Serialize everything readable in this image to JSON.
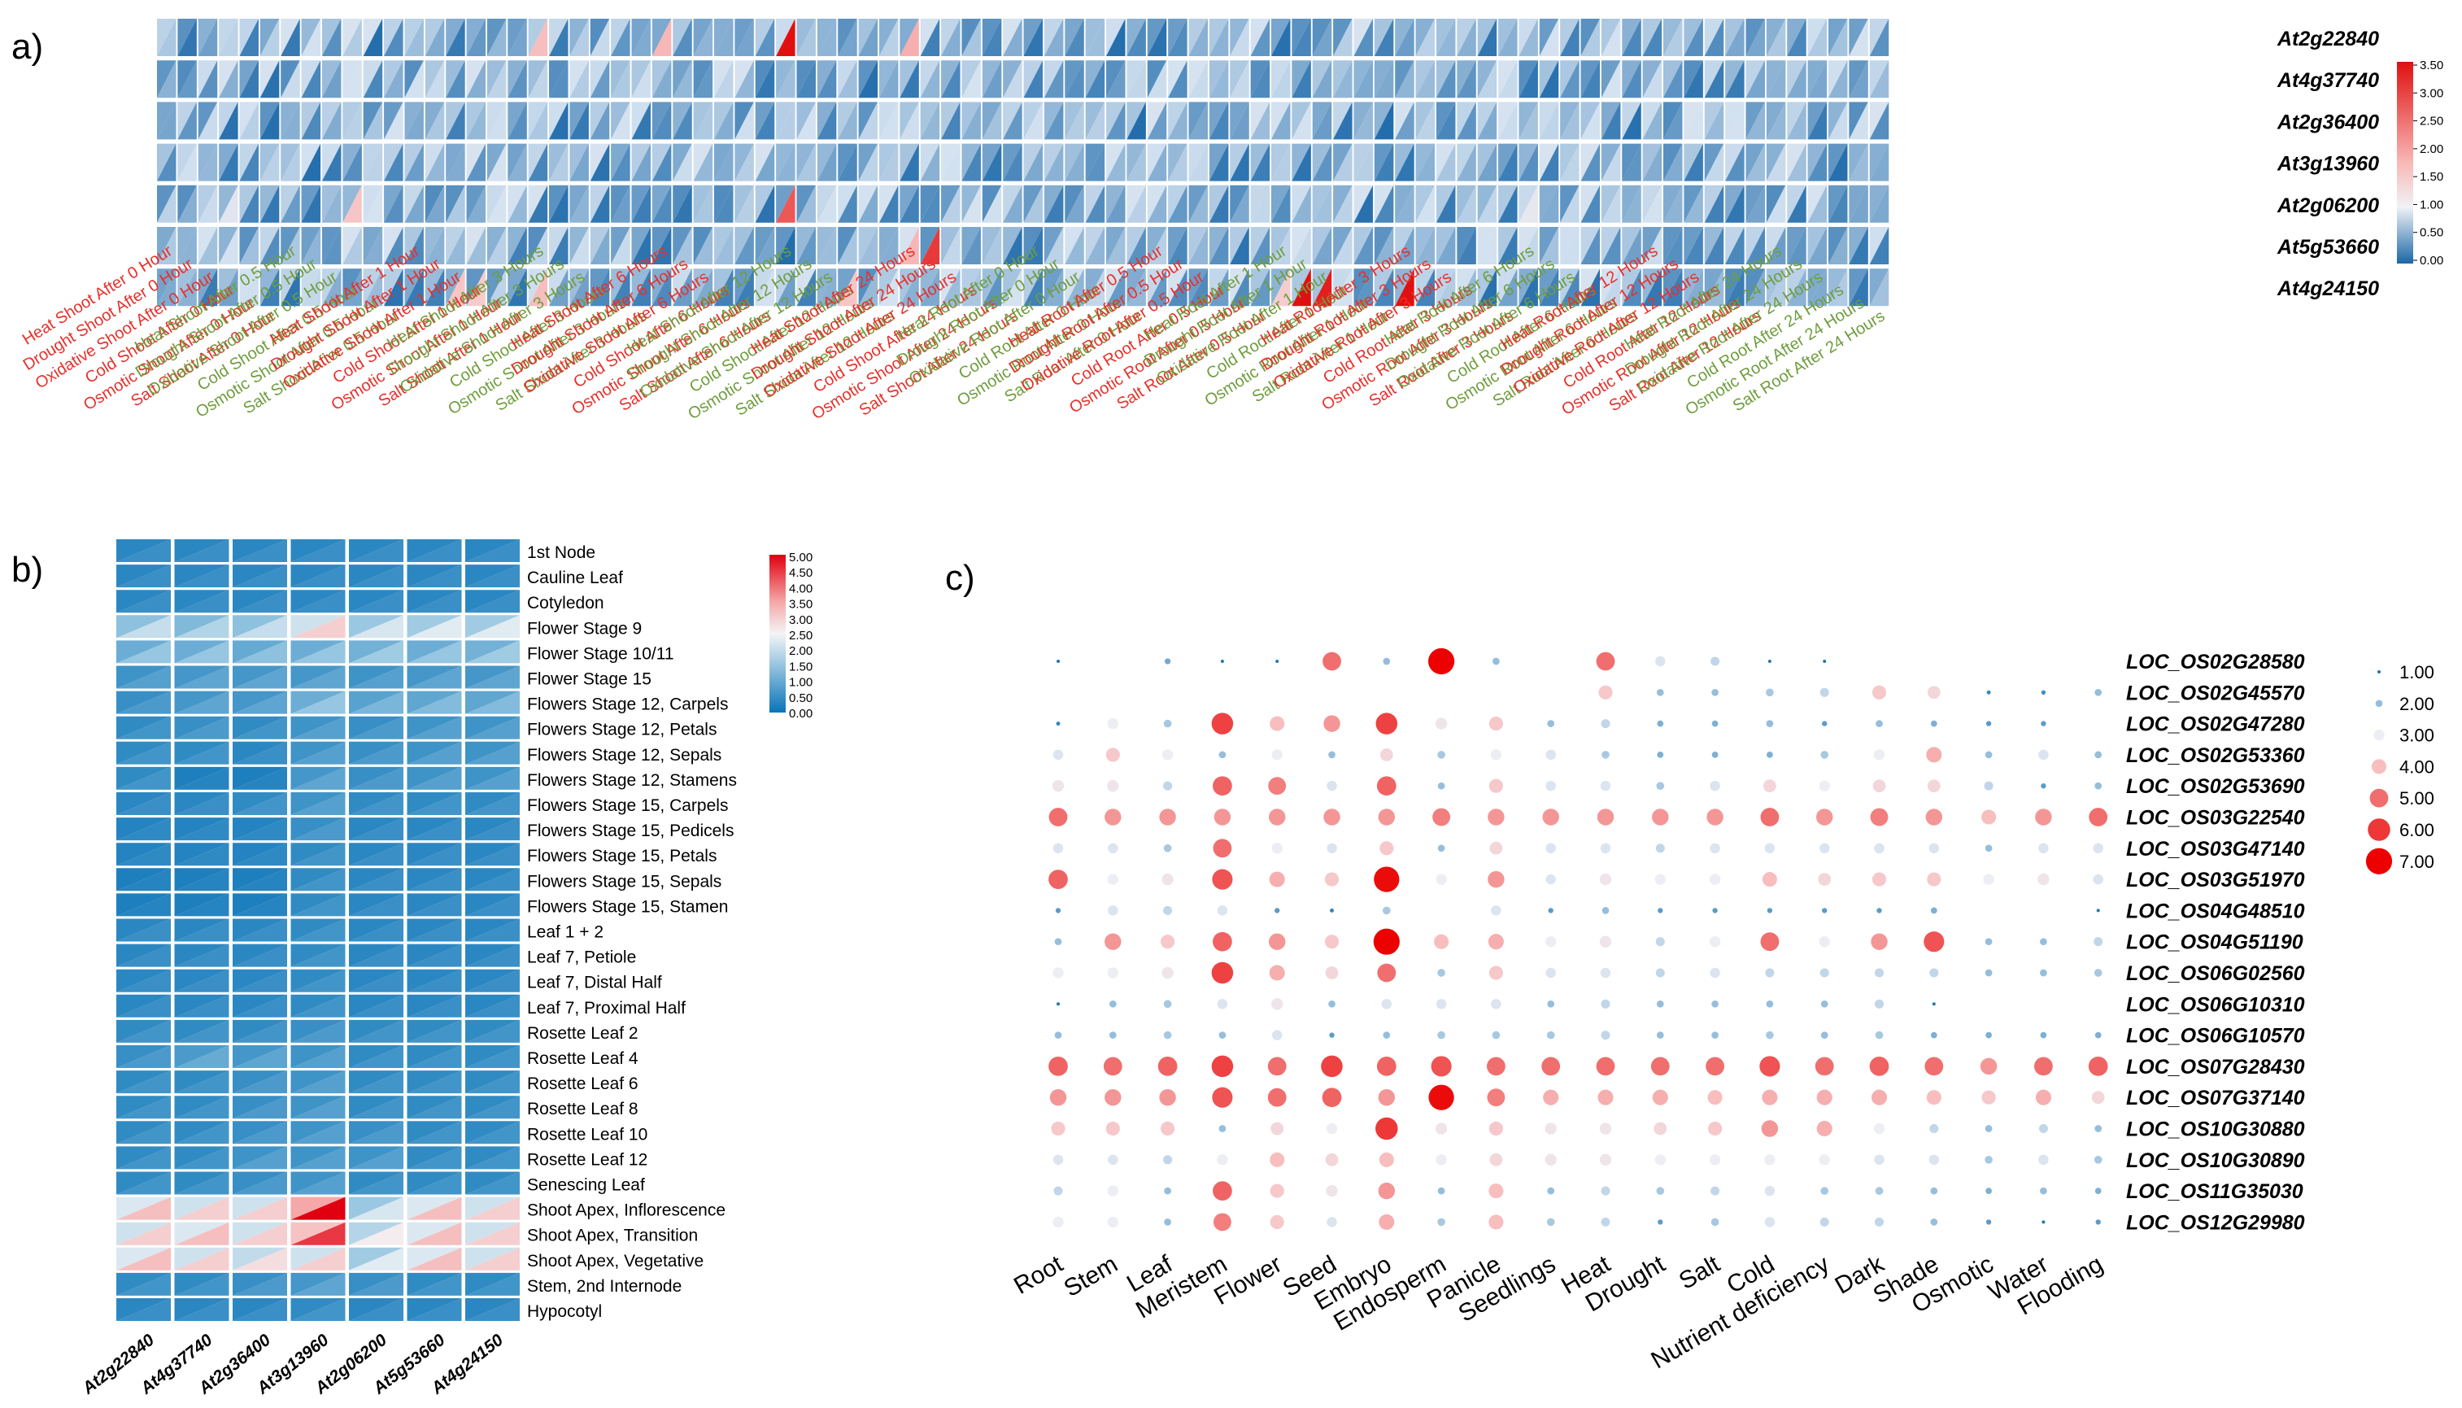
{
  "panels": {
    "a": "a)",
    "b": "b)",
    "c": "c)"
  },
  "chart_data": [
    {
      "type": "heatmap",
      "panel": "a",
      "title": "",
      "genes": [
        "At2g22840",
        "At4g37740",
        "At2g36400",
        "At3g13960",
        "At2g06200",
        "At5g53660",
        "At4g24150"
      ],
      "conditions": [
        "Heat Shoot After 0 Hour",
        "Drought Shoot After 0 Hour",
        "Oxidative Shoot After 0 Hour",
        "Cold Shoot After 0 Hour",
        "Osmotic Shoot After 0 Hour",
        "Salt Shoot After 0 Hour",
        "Heat Shoot After 0.5 Hour",
        "Drought Shoot After 0.5 Hour",
        "Oxidative Shoot After 0.5 Hour",
        "Cold Shoot After 0.5 Hour",
        "Osmotic Shoot After 0.5 Hour",
        "Salt Shoot After 0.5 Hour",
        "Heat Shoot After 1 Hour",
        "Drought Shoot After 1 Hour",
        "Oxidative Shoot After 1 Hour",
        "Cold Shoot After 1 Hour",
        "Osmotic Shoot After 1 Hour",
        "Salt Shoot After 1 Hour",
        "Heat Shoot After 3 Hours",
        "Drought Shoot After 3 Hours",
        "Oxidative Shoot After 3 Hours",
        "Cold Shoot After 3 Hours",
        "Osmotic Shoot After 3 Hours",
        "Salt Shoot After 3 Hours",
        "Heat Shoot After 6 Hours",
        "Drought Shoot After 6 Hours",
        "Oxidative Shoot After 6 Hours",
        "Cold Shoot After 6 Hours",
        "Osmotic Shoot After 6 Hours",
        "Salt Shoot After 6 Hours",
        "Heat Shoot After 12 Hours",
        "Drought Shoot After 12 Hours",
        "Oxidative Shoot After 12 Hours",
        "Cold Shoot After 12 Hours",
        "Osmotic Shoot After 12 Hours",
        "Salt Shoot After 12 Hours",
        "Heat Shoot After 24 Hours",
        "Drought Shoot After 24 Hours",
        "Oxidative Shoot After 24 Hours",
        "Cold Shoot After 24 Hours",
        "Osmotic Shoot After 24 Hours",
        "Salt Shoot After 24 Hours",
        "Heat Root After 0 Hour",
        "Drought Root After 0 Hour",
        "Oxidative Root After 0 Hour",
        "Cold Root After 0 Hour",
        "Osmotic Root After 0 Hour",
        "Salt Root After 0 Hour",
        "Heat Root After 0.5 Hour",
        "Drought Root After 0.5 Hour",
        "Oxidative Root After 0.5 Hour",
        "Cold Root After 0.5 Hour",
        "Osmotic Root After 0.5 Hour",
        "Salt Root After 0.5 Hour",
        "Heat Root After 1 Hour",
        "Drought Root After 1 Hour",
        "Oxidative Root After 1 Hour",
        "Cold Root After 1 Hour",
        "Osmotic Root After 1 Hour",
        "Salt Root After 1 Hour",
        "Heat Root After 3 Hours",
        "Drought Root After 3 Hours",
        "Oxidative Root After 3 Hours",
        "Cold Root After 3 Hours",
        "Osmotic Root After 3 Hours",
        "Salt Root After 3 Hours",
        "Heat Root After 6 Hours",
        "Drought Root After 6 Hours",
        "Oxidative Root After 6 Hours",
        "Cold Root After 6 Hours",
        "Osmotic Root After 6 Hours",
        "Salt Root After 6 Hours",
        "Heat Root After 12 Hours",
        "Drought Root After 12 Hours",
        "Oxidative Root After 12 Hours",
        "Cold Root After 12 Hours",
        "Osmotic Root After 12 Hours",
        "Salt Root After 12 Hours",
        "Heat Root After 24 Hours",
        "Drought Root After 24 Hours",
        "Oxidative Root After 24 Hours",
        "Cold Root After 24 Hours",
        "Osmotic Root After 24 Hours",
        "Salt Root After 24 Hours"
      ],
      "condition_label_colors": [
        "#e8302a",
        "#6f9d3d"
      ],
      "condition_label_group_size": 6,
      "baseline": 1.0,
      "highlights": [
        {
          "gene": "At2g22840",
          "condition": "Heat Shoot After 3 Hours",
          "value": 2.1
        },
        {
          "gene": "At2g22840",
          "condition": "Heat Shoot After 6 Hours",
          "value": 2.2
        },
        {
          "gene": "At2g22840",
          "condition": "Heat Shoot After 12 Hours",
          "value": 3.5
        },
        {
          "gene": "At2g22840",
          "condition": "Heat Shoot After 24 Hours",
          "value": 2.3
        },
        {
          "gene": "At2g06200",
          "condition": "Cold Shoot After 0 Hour",
          "value": 1.2
        },
        {
          "gene": "At2g06200",
          "condition": "Cold Shoot After 0.5 Hour",
          "value": 2.0
        },
        {
          "gene": "At2g06200",
          "condition": "Heat Shoot After 12 Hours",
          "value": 3.0
        },
        {
          "gene": "At2g06200",
          "condition": "Heat Root After 6 Hours",
          "value": 1.3
        },
        {
          "gene": "At5g53660",
          "condition": "Heat Shoot After 24 Hours",
          "value": 2.2
        },
        {
          "gene": "At5g53660",
          "condition": "Drought Shoot After 24 Hours",
          "value": 3.2
        },
        {
          "gene": "At4g24150",
          "condition": "Oxidative Shoot After 1 Hour",
          "value": 2.0
        },
        {
          "gene": "At4g24150",
          "condition": "Cold Shoot After 1 Hour",
          "value": 1.9
        },
        {
          "gene": "At4g24150",
          "condition": "Heat Shoot After 3 Hours",
          "value": 2.1
        },
        {
          "gene": "At4g24150",
          "condition": "Cold Shoot After 12 Hours",
          "value": 2.0
        },
        {
          "gene": "At4g24150",
          "condition": "Heat Root After 1 Hour",
          "value": 1.9
        },
        {
          "gene": "At4g24150",
          "condition": "Drought Root After 1 Hour",
          "value": 3.5
        },
        {
          "gene": "At4g24150",
          "condition": "Oxidative Root After 1 Hour",
          "value": 3.4
        },
        {
          "gene": "At4g24150",
          "condition": "Heat Root After 3 Hours",
          "value": 3.5
        }
      ],
      "colorbar": {
        "ticks": [
          "3.50",
          "3.00",
          "2.50",
          "2.00",
          "1.50",
          "1.00",
          "0.50",
          "0.00"
        ],
        "range": [
          0,
          3.5
        ]
      }
    },
    {
      "type": "heatmap",
      "panel": "b",
      "genes": [
        "At2g22840",
        "At4g37740",
        "At2g36400",
        "At3g13960",
        "At2g06200",
        "At5g53660",
        "At4g24150"
      ],
      "tissues": [
        "1st Node",
        "Cauline Leaf",
        "Cotyledon",
        "Flower Stage 9",
        "Flower Stage 10/11",
        "Flower Stage 15",
        "Flowers Stage 12, Carpels",
        "Flowers Stage 12, Petals",
        "Flowers Stage 12, Sepals",
        "Flowers Stage 12, Stamens",
        "Flowers Stage 15, Carpels",
        "Flowers Stage 15, Pedicels",
        "Flowers Stage 15, Petals",
        "Flowers Stage 15, Sepals",
        "Flowers Stage 15, Stamen",
        "Leaf 1 + 2",
        "Leaf 7, Petiole",
        "Leaf 7, Distal Half",
        "Leaf 7, Proximal Half",
        "Rosette Leaf 2",
        "Rosette Leaf 4",
        "Rosette Leaf 6",
        "Rosette Leaf 8",
        "Rosette Leaf 10",
        "Rosette Leaf 12",
        "Senescing Leaf",
        "Shoot Apex, Inflorescence",
        "Shoot Apex, Transition",
        "Shoot Apex, Vegetative",
        "Stem, 2nd Internode",
        "Hypocotyl"
      ],
      "values": [
        [
          0.5,
          0.5,
          0.5,
          0.5,
          0.5,
          0.5,
          0.5
        ],
        [
          0.5,
          0.5,
          0.5,
          0.5,
          0.5,
          0.5,
          0.5
        ],
        [
          0.5,
          0.5,
          0.5,
          0.5,
          0.5,
          0.5,
          0.5
        ],
        [
          2.0,
          1.8,
          2.0,
          3.0,
          2.2,
          2.3,
          2.3
        ],
        [
          1.5,
          1.5,
          1.4,
          1.5,
          1.6,
          1.5,
          1.6
        ],
        [
          0.8,
          0.9,
          0.9,
          0.9,
          0.8,
          0.9,
          0.9
        ],
        [
          0.7,
          0.9,
          0.9,
          1.5,
          1.2,
          1.3,
          1.3
        ],
        [
          0.6,
          0.7,
          0.6,
          0.8,
          0.7,
          0.8,
          0.8
        ],
        [
          0.6,
          0.6,
          0.5,
          0.8,
          0.7,
          0.8,
          0.8
        ],
        [
          0.6,
          0.3,
          0.3,
          0.9,
          0.7,
          0.8,
          0.8
        ],
        [
          0.5,
          0.5,
          0.6,
          0.8,
          0.6,
          0.6,
          0.6
        ],
        [
          0.4,
          0.4,
          0.4,
          0.7,
          0.5,
          0.5,
          0.5
        ],
        [
          0.4,
          0.4,
          0.4,
          0.6,
          0.5,
          0.5,
          0.5
        ],
        [
          0.3,
          0.3,
          0.3,
          0.6,
          0.5,
          0.5,
          0.5
        ],
        [
          0.3,
          0.3,
          0.3,
          0.6,
          0.5,
          0.5,
          0.5
        ],
        [
          0.5,
          0.5,
          0.5,
          0.6,
          0.5,
          0.5,
          0.5
        ],
        [
          0.5,
          0.5,
          0.5,
          0.6,
          0.5,
          0.5,
          0.5
        ],
        [
          0.5,
          0.5,
          0.5,
          0.6,
          0.5,
          0.5,
          0.5
        ],
        [
          0.5,
          0.5,
          0.5,
          0.6,
          0.5,
          0.5,
          0.5
        ],
        [
          0.6,
          0.6,
          0.6,
          0.7,
          0.6,
          0.6,
          0.6
        ],
        [
          0.7,
          1.0,
          0.9,
          0.8,
          0.6,
          0.6,
          0.6
        ],
        [
          0.6,
          0.6,
          0.7,
          0.8,
          0.6,
          0.6,
          0.6
        ],
        [
          0.6,
          0.6,
          0.7,
          0.8,
          0.6,
          0.6,
          0.6
        ],
        [
          0.6,
          0.6,
          0.7,
          0.8,
          0.7,
          0.6,
          0.6
        ],
        [
          0.6,
          0.6,
          0.8,
          0.8,
          0.8,
          0.6,
          0.6
        ],
        [
          0.6,
          0.6,
          0.7,
          0.8,
          0.6,
          0.6,
          0.6
        ],
        [
          3.2,
          3.0,
          3.0,
          5.0,
          2.2,
          3.2,
          3.0
        ],
        [
          3.0,
          3.2,
          3.0,
          4.5,
          2.6,
          3.2,
          3.0
        ],
        [
          3.2,
          3.0,
          2.8,
          3.0,
          2.3,
          3.2,
          3.0
        ],
        [
          0.6,
          0.6,
          0.7,
          0.9,
          0.7,
          0.6,
          0.6
        ],
        [
          0.5,
          0.5,
          0.5,
          0.6,
          0.5,
          0.5,
          0.5
        ]
      ],
      "colorbar": {
        "ticks": [
          "5.00",
          "4.50",
          "4.00",
          "3.50",
          "3.00",
          "2.50",
          "2.00",
          "1.50",
          "1.00",
          "0.50",
          "0.00"
        ],
        "range": [
          0,
          5
        ]
      }
    },
    {
      "type": "scatter",
      "subtype": "bubble-heatmap",
      "panel": "c",
      "genes": [
        "LOC_OS02G28580",
        "LOC_OS02G45570",
        "LOC_OS02G47280",
        "LOC_OS02G53360",
        "LOC_OS02G53690",
        "LOC_OS03G22540",
        "LOC_OS03G47140",
        "LOC_OS03G51970",
        "LOC_OS04G48510",
        "LOC_OS04G51190",
        "LOC_OS06G02560",
        "LOC_OS06G10310",
        "LOC_OS06G10570",
        "LOC_OS07G28430",
        "LOC_OS07G37140",
        "LOC_OS10G30880",
        "LOC_OS10G30890",
        "LOC_OS11G35030",
        "LOC_OS12G29980"
      ],
      "conditions": [
        "Root",
        "Stem",
        "Leaf",
        "Meristem",
        "Flower",
        "Seed",
        "Embryo",
        "Endosperm",
        "Panicle",
        "Seedlings",
        "Heat",
        "Drought",
        "Salt",
        "Cold",
        "Nutrient deficiency",
        "Dark",
        "Shade",
        "Osmotic",
        "Water",
        "Flooding"
      ],
      "values": [
        [
          1.0,
          0,
          1.7,
          1.0,
          1.0,
          5.0,
          2.0,
          7.0,
          2.0,
          0,
          5.0,
          2.8,
          2.5,
          1.0,
          1.0,
          0,
          0,
          0,
          0,
          0
        ],
        [
          0,
          0,
          0,
          0,
          0,
          0,
          0,
          0,
          0,
          0,
          3.8,
          2.0,
          2.0,
          2.2,
          2.5,
          3.8,
          3.5,
          1.2,
          1.3,
          2.0
        ],
        [
          1.2,
          3.0,
          2.2,
          5.8,
          4.0,
          4.5,
          5.8,
          3.2,
          3.8,
          2.0,
          2.5,
          1.8,
          1.8,
          2.0,
          1.5,
          2.0,
          1.8,
          1.5,
          1.5,
          0
        ],
        [
          2.8,
          3.8,
          3.0,
          2.0,
          3.0,
          2.0,
          3.5,
          2.2,
          3.0,
          2.8,
          2.2,
          1.8,
          1.8,
          1.8,
          2.2,
          3.0,
          4.2,
          2.0,
          2.8,
          2.0
        ],
        [
          3.2,
          3.2,
          2.5,
          5.2,
          4.8,
          2.8,
          5.2,
          2.0,
          3.8,
          2.8,
          2.8,
          2.2,
          2.8,
          3.5,
          3.0,
          3.5,
          3.5,
          2.5,
          1.5,
          2.0
        ],
        [
          5.0,
          4.5,
          4.5,
          4.5,
          4.5,
          4.5,
          4.5,
          4.8,
          4.5,
          4.5,
          4.5,
          4.5,
          4.5,
          5.0,
          4.5,
          4.8,
          4.5,
          4.0,
          4.5,
          5.0
        ],
        [
          2.8,
          2.8,
          2.2,
          5.0,
          3.0,
          2.8,
          3.8,
          2.0,
          3.5,
          2.8,
          2.8,
          2.5,
          2.8,
          2.8,
          2.8,
          2.8,
          2.8,
          2.0,
          2.8,
          2.8
        ],
        [
          5.2,
          3.0,
          3.2,
          5.5,
          4.2,
          3.8,
          6.8,
          3.0,
          4.5,
          2.8,
          3.2,
          3.0,
          3.0,
          4.0,
          3.5,
          3.8,
          3.8,
          3.0,
          3.2,
          2.8
        ],
        [
          1.5,
          2.8,
          2.5,
          2.8,
          1.5,
          1.2,
          2.2,
          0,
          2.8,
          1.5,
          2.0,
          1.5,
          1.5,
          1.5,
          1.5,
          1.5,
          1.8,
          0,
          0,
          1.0
        ],
        [
          2.0,
          4.5,
          3.8,
          5.2,
          4.5,
          3.8,
          7.0,
          4.0,
          4.2,
          3.0,
          3.2,
          2.5,
          3.0,
          5.0,
          3.0,
          4.5,
          5.5,
          2.0,
          2.0,
          2.5
        ],
        [
          3.0,
          3.0,
          3.2,
          5.8,
          4.2,
          3.5,
          5.0,
          2.2,
          3.8,
          2.8,
          2.8,
          2.5,
          2.8,
          2.5,
          2.5,
          2.5,
          2.5,
          2.0,
          2.0,
          2.2
        ],
        [
          1.0,
          2.0,
          2.2,
          2.8,
          3.2,
          2.0,
          2.8,
          2.8,
          2.8,
          2.0,
          2.5,
          2.0,
          2.0,
          2.0,
          2.0,
          2.5,
          1.0,
          0,
          0,
          0
        ],
        [
          2.0,
          2.0,
          2.2,
          2.0,
          2.8,
          1.5,
          2.0,
          2.2,
          2.2,
          2.2,
          2.5,
          2.0,
          2.0,
          2.2,
          2.0,
          2.2,
          1.8,
          1.8,
          1.8,
          1.8
        ],
        [
          5.2,
          5.0,
          5.2,
          5.8,
          5.0,
          5.8,
          5.2,
          5.5,
          5.0,
          5.0,
          5.0,
          5.0,
          5.0,
          5.5,
          5.0,
          5.2,
          5.0,
          4.5,
          5.0,
          5.2
        ],
        [
          4.5,
          4.5,
          4.5,
          5.5,
          5.0,
          5.2,
          4.5,
          6.8,
          4.8,
          4.2,
          4.2,
          4.2,
          4.0,
          4.2,
          4.2,
          4.2,
          4.0,
          3.8,
          4.2,
          3.5
        ],
        [
          3.8,
          3.8,
          3.8,
          2.0,
          3.5,
          3.0,
          6.0,
          3.2,
          3.8,
          3.2,
          3.2,
          3.5,
          3.8,
          4.5,
          4.2,
          3.0,
          2.5,
          2.0,
          2.5,
          2.0
        ],
        [
          2.8,
          2.8,
          2.5,
          3.0,
          4.0,
          3.5,
          4.0,
          3.0,
          3.5,
          3.2,
          3.2,
          3.0,
          3.0,
          3.0,
          3.0,
          2.8,
          2.8,
          2.2,
          2.8,
          2.2
        ],
        [
          2.5,
          3.0,
          2.0,
          5.2,
          3.8,
          3.2,
          4.5,
          2.0,
          4.0,
          2.0,
          2.5,
          2.2,
          2.5,
          2.8,
          2.2,
          2.2,
          2.0,
          1.8,
          2.0,
          1.8
        ],
        [
          3.0,
          3.0,
          2.0,
          4.8,
          3.8,
          2.8,
          4.2,
          2.2,
          4.0,
          2.2,
          2.5,
          1.5,
          2.2,
          2.8,
          2.5,
          2.5,
          2.0,
          1.5,
          1.0,
          1.5
        ]
      ],
      "legend": {
        "values": [
          "1.00",
          "2.00",
          "3.00",
          "4.00",
          "5.00",
          "6.00",
          "7.00"
        ],
        "placement": "top-right"
      }
    }
  ]
}
